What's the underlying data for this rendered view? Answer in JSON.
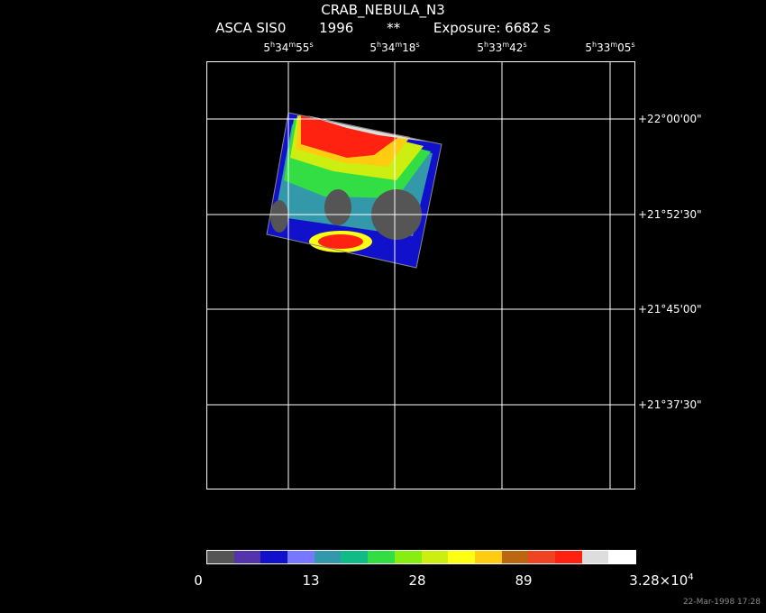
{
  "title": "CRAB_NEBULA_N3",
  "subtitle": {
    "instrument": "ASCA SIS0",
    "year": "1996",
    "marker": "**",
    "exposure": "Exposure:  6682 s"
  },
  "ra_ticks": [
    {
      "h": "5",
      "m": "34",
      "s": "55"
    },
    {
      "h": "5",
      "m": "34",
      "s": "18"
    },
    {
      "h": "5",
      "m": "33",
      "s": "42"
    },
    {
      "h": "5",
      "m": "33",
      "s": "05"
    }
  ],
  "dec_ticks": [
    "+22°00'00\"",
    "+21°52'30\"",
    "+21°45'00\"",
    "+21°37'30\""
  ],
  "colorbar": {
    "colors": [
      "#555555",
      "#5533aa",
      "#1111cc",
      "#7777ff",
      "#3399aa",
      "#11bb88",
      "#33dd44",
      "#88ee11",
      "#ccee11",
      "#ffff11",
      "#ffcc11",
      "#bb6611",
      "#ee4422",
      "#ff2211",
      "#dddddd",
      "#ffffff"
    ],
    "labels": [
      "0",
      "13",
      "28",
      "89"
    ],
    "max_label": "3.28×10",
    "max_exp": "4"
  },
  "timestamp": "22-Mar-1998 17:28"
}
